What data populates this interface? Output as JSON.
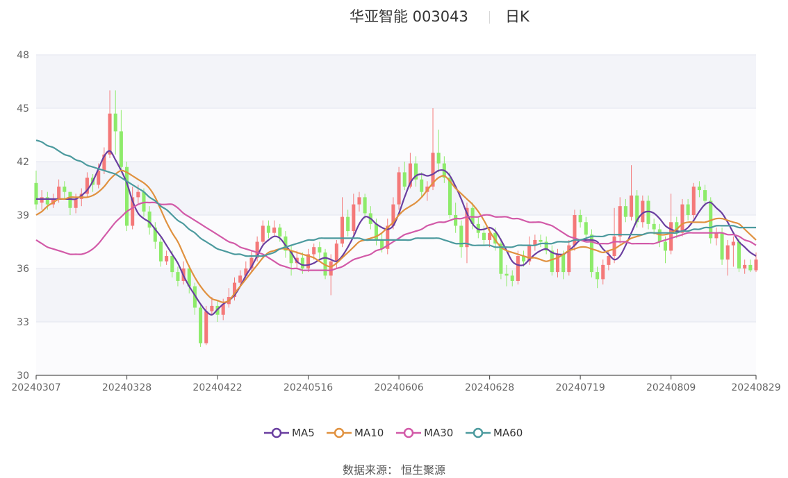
{
  "header": {
    "title": "华亚智能 003043",
    "period": "日K"
  },
  "source": {
    "label": "数据来源：",
    "name": "恒生聚源"
  },
  "chart_data": {
    "type": "candlestick",
    "title": "华亚智能 003043",
    "ylim": [
      30,
      48
    ],
    "yticks": [
      30,
      33,
      36,
      39,
      42,
      45,
      48
    ],
    "xtick_labels": [
      "20240307",
      "20240328",
      "20240422",
      "20240516",
      "20240606",
      "20240628",
      "20240719",
      "20240809",
      "20240829"
    ],
    "xtick_indices": [
      0,
      16,
      32,
      48,
      64,
      80,
      96,
      112,
      127
    ],
    "up_color": "#f47979",
    "down_color": "#8deb6a",
    "grid": true,
    "legend_position": "bottom",
    "ohlc": [
      [
        40.8,
        39.6,
        41.5,
        39.3
      ],
      [
        39.7,
        40.0,
        40.4,
        39.3
      ],
      [
        40.0,
        39.6,
        40.3,
        39.3
      ],
      [
        39.6,
        39.9,
        40.2,
        39.4
      ],
      [
        39.9,
        40.6,
        41.0,
        39.7
      ],
      [
        40.6,
        40.3,
        40.9,
        39.9
      ],
      [
        40.3,
        39.4,
        40.3,
        39.0
      ],
      [
        39.4,
        39.9,
        40.2,
        39.1
      ],
      [
        39.9,
        40.2,
        40.5,
        39.5
      ],
      [
        40.2,
        41.1,
        41.4,
        40.0
      ],
      [
        41.1,
        40.7,
        41.3,
        40.3
      ],
      [
        40.7,
        41.5,
        41.9,
        40.5
      ],
      [
        41.5,
        42.4,
        42.8,
        41.3
      ],
      [
        42.4,
        44.7,
        46.0,
        42.2
      ],
      [
        44.7,
        43.7,
        46.0,
        42.4
      ],
      [
        43.7,
        41.7,
        44.9,
        41.4
      ],
      [
        41.7,
        38.4,
        42.0,
        38.1
      ],
      [
        38.4,
        40.0,
        40.6,
        38.2
      ],
      [
        40.0,
        40.3,
        40.7,
        39.6
      ],
      [
        40.3,
        39.2,
        40.5,
        38.9
      ],
      [
        39.2,
        38.3,
        39.5,
        37.9
      ],
      [
        38.3,
        37.5,
        38.6,
        37.1
      ],
      [
        37.5,
        36.4,
        37.8,
        36.1
      ],
      [
        36.4,
        36.7,
        37.0,
        36.2
      ],
      [
        36.7,
        35.8,
        37.0,
        35.5
      ],
      [
        35.8,
        35.3,
        36.1,
        35.0
      ],
      [
        35.3,
        36.0,
        36.4,
        35.1
      ],
      [
        36.0,
        35.0,
        36.2,
        34.6
      ],
      [
        35.0,
        33.8,
        35.2,
        33.4
      ],
      [
        33.8,
        31.8,
        34.0,
        31.6
      ],
      [
        31.8,
        33.6,
        33.9,
        31.7
      ],
      [
        33.6,
        33.9,
        34.4,
        33.4
      ],
      [
        33.9,
        33.4,
        34.2,
        33.0
      ],
      [
        33.4,
        34.0,
        34.3,
        33.1
      ],
      [
        34.0,
        34.4,
        34.9,
        33.8
      ],
      [
        34.4,
        35.2,
        35.5,
        34.2
      ],
      [
        35.2,
        35.6,
        35.9,
        35.0
      ],
      [
        35.6,
        36.0,
        36.4,
        35.4
      ],
      [
        36.0,
        36.6,
        37.0,
        35.8
      ],
      [
        36.6,
        37.5,
        37.8,
        36.4
      ],
      [
        37.5,
        38.4,
        38.7,
        37.3
      ],
      [
        38.4,
        38.0,
        38.7,
        37.7
      ],
      [
        38.0,
        38.3,
        38.7,
        37.8
      ],
      [
        38.3,
        37.8,
        38.5,
        37.5
      ],
      [
        37.8,
        37.0,
        38.1,
        36.6
      ],
      [
        37.0,
        36.3,
        37.3,
        35.6
      ],
      [
        36.3,
        36.6,
        37.0,
        36.0
      ],
      [
        36.6,
        36.0,
        36.9,
        35.7
      ],
      [
        36.0,
        36.8,
        37.1,
        35.8
      ],
      [
        36.8,
        37.2,
        37.4,
        36.5
      ],
      [
        37.2,
        36.9,
        37.5,
        36.5
      ],
      [
        36.9,
        35.6,
        37.1,
        35.4
      ],
      [
        35.6,
        36.4,
        36.8,
        34.5
      ],
      [
        36.4,
        37.4,
        37.6,
        36.0
      ],
      [
        37.4,
        38.9,
        40.0,
        37.2
      ],
      [
        38.9,
        38.1,
        39.3,
        37.8
      ],
      [
        38.1,
        39.6,
        40.2,
        37.9
      ],
      [
        39.6,
        40.0,
        40.3,
        39.2
      ],
      [
        40.0,
        39.1,
        40.2,
        38.8
      ],
      [
        39.1,
        38.5,
        39.5,
        38.2
      ],
      [
        38.5,
        37.6,
        38.8,
        37.3
      ],
      [
        37.6,
        37.1,
        38.0,
        36.9
      ],
      [
        37.1,
        38.4,
        38.8,
        36.8
      ],
      [
        38.4,
        39.6,
        40.0,
        38.2
      ],
      [
        39.6,
        41.4,
        41.7,
        39.3
      ],
      [
        41.4,
        40.6,
        42.0,
        40.4
      ],
      [
        40.6,
        41.9,
        42.5,
        40.5
      ],
      [
        41.9,
        41.0,
        42.3,
        40.6
      ],
      [
        41.0,
        40.3,
        41.4,
        40.0
      ],
      [
        40.3,
        40.6,
        40.9,
        39.8
      ],
      [
        40.6,
        42.5,
        45.0,
        40.4
      ],
      [
        42.5,
        41.9,
        43.8,
        41.4
      ],
      [
        41.9,
        41.1,
        42.3,
        40.8
      ],
      [
        41.1,
        39.0,
        41.4,
        38.8
      ],
      [
        39.0,
        38.4,
        39.7,
        38.0
      ],
      [
        38.4,
        37.2,
        38.7,
        36.6
      ],
      [
        37.2,
        39.4,
        39.7,
        36.3
      ],
      [
        39.4,
        38.5,
        39.7,
        38.2
      ],
      [
        38.5,
        38.0,
        38.9,
        37.7
      ],
      [
        38.0,
        37.6,
        38.4,
        37.3
      ],
      [
        37.6,
        38.0,
        38.3,
        37.2
      ],
      [
        38.0,
        37.4,
        38.3,
        37.0
      ],
      [
        37.4,
        35.7,
        37.7,
        35.4
      ],
      [
        35.7,
        35.6,
        36.2,
        35.0
      ],
      [
        35.6,
        35.3,
        35.9,
        35.0
      ],
      [
        35.3,
        36.7,
        37.0,
        35.1
      ],
      [
        36.7,
        36.4,
        37.0,
        36.1
      ],
      [
        36.4,
        37.3,
        37.8,
        36.2
      ],
      [
        37.3,
        37.6,
        37.9,
        37.0
      ],
      [
        37.6,
        37.5,
        37.9,
        37.2
      ],
      [
        37.5,
        37.0,
        37.8,
        36.8
      ],
      [
        37.0,
        35.8,
        37.3,
        35.6
      ],
      [
        35.8,
        36.8,
        37.1,
        35.5
      ],
      [
        36.8,
        35.8,
        37.0,
        35.4
      ],
      [
        35.8,
        37.3,
        37.6,
        35.6
      ],
      [
        37.3,
        39.0,
        39.3,
        37.0
      ],
      [
        39.0,
        38.6,
        39.3,
        38.3
      ],
      [
        38.6,
        37.9,
        38.9,
        37.6
      ],
      [
        37.9,
        35.8,
        38.2,
        35.5
      ],
      [
        35.8,
        35.4,
        36.1,
        34.9
      ],
      [
        35.4,
        36.2,
        36.5,
        35.1
      ],
      [
        36.2,
        36.7,
        37.0,
        35.9
      ],
      [
        36.7,
        37.8,
        39.4,
        36.3
      ],
      [
        37.8,
        39.5,
        40.0,
        37.4
      ],
      [
        39.5,
        38.9,
        39.9,
        38.6
      ],
      [
        38.9,
        40.1,
        41.8,
        38.7
      ],
      [
        40.1,
        38.6,
        40.4,
        38.3
      ],
      [
        38.6,
        39.8,
        40.1,
        38.3
      ],
      [
        39.8,
        38.5,
        40.1,
        38.2
      ],
      [
        38.5,
        38.2,
        38.8,
        37.9
      ],
      [
        38.2,
        37.5,
        38.5,
        37.2
      ],
      [
        37.5,
        37.0,
        37.8,
        36.3
      ],
      [
        37.0,
        38.6,
        40.2,
        36.8
      ],
      [
        38.6,
        38.0,
        38.9,
        37.7
      ],
      [
        38.0,
        39.6,
        39.9,
        37.8
      ],
      [
        39.6,
        39.0,
        39.9,
        38.7
      ],
      [
        39.0,
        40.6,
        40.8,
        38.8
      ],
      [
        40.6,
        40.4,
        40.9,
        40.0
      ],
      [
        40.4,
        39.8,
        40.7,
        39.5
      ],
      [
        39.8,
        37.7,
        40.0,
        37.4
      ],
      [
        37.7,
        38.0,
        38.3,
        37.3
      ],
      [
        38.0,
        36.5,
        38.3,
        36.2
      ],
      [
        36.5,
        37.3,
        37.6,
        35.6
      ],
      [
        37.3,
        37.5,
        37.8,
        36.1
      ],
      [
        37.5,
        36.0,
        37.7,
        35.8
      ],
      [
        36.0,
        36.2,
        36.5,
        35.7
      ],
      [
        36.2,
        35.9,
        36.5,
        35.8
      ],
      [
        35.9,
        36.5,
        36.9,
        35.8
      ]
    ],
    "series": [
      {
        "name": "MA5",
        "color": "#6a3fa0",
        "values": [
          39.9,
          39.9,
          39.9,
          39.9,
          39.9,
          39.9,
          39.9,
          39.9,
          40.1,
          40.4,
          40.9,
          41.6,
          42.3,
          42.6,
          42.1,
          41.5,
          40.8,
          39.8,
          39.1,
          38.8,
          38.6,
          38.2,
          37.8,
          37.3,
          36.8,
          36.3,
          35.6,
          35.0,
          34.5,
          34.0,
          33.6,
          33.4,
          33.7,
          34.0,
          34.2,
          34.5,
          35.0,
          35.6,
          36.1,
          36.7,
          37.3,
          37.6,
          37.8,
          37.7,
          37.3,
          36.9,
          36.4,
          36.2,
          36.2,
          36.3,
          36.5,
          36.6,
          36.5,
          36.4,
          36.7,
          37.2,
          37.8,
          38.5,
          38.9,
          38.8,
          38.5,
          38.3,
          38.2,
          38.4,
          39.1,
          40.0,
          40.8,
          41.2,
          41.3,
          41.2,
          41.3,
          41.5,
          41.5,
          41.2,
          40.6,
          39.9,
          39.1,
          38.5,
          38.2,
          38.2,
          38.3,
          38.1,
          37.6,
          37.0,
          36.4,
          36.2,
          36.2,
          36.5,
          36.8,
          37.0,
          37.1,
          36.9,
          36.8,
          36.8,
          37.0,
          37.3,
          37.6,
          37.6,
          37.6,
          37.5,
          37.1,
          36.8,
          36.5,
          36.7,
          37.3,
          38.0,
          38.7,
          39.1,
          39.2,
          39.1,
          38.8,
          38.4,
          38.2,
          38.1,
          38.1,
          38.3,
          38.7,
          39.2,
          39.6,
          39.7,
          39.4,
          39.1,
          38.6,
          38.0,
          37.5,
          37.2,
          36.9,
          36.7
        ]
      },
      {
        "name": "MA10",
        "color": "#e0913f",
        "values": [
          39.0,
          39.2,
          39.5,
          39.7,
          39.9,
          39.9,
          40.0,
          40.0,
          40.0,
          40.0,
          40.1,
          40.3,
          40.6,
          41.0,
          41.3,
          41.5,
          41.4,
          41.2,
          41.0,
          40.8,
          40.5,
          40.0,
          39.3,
          38.6,
          38.0,
          37.5,
          36.8,
          36.1,
          35.5,
          35.0,
          34.6,
          34.3,
          34.2,
          34.1,
          34.2,
          34.6,
          35.0,
          35.4,
          35.8,
          36.2,
          36.6,
          36.9,
          37.0,
          37.1,
          37.1,
          37.0,
          36.9,
          36.8,
          36.7,
          36.6,
          36.4,
          36.2,
          36.1,
          36.3,
          36.6,
          36.9,
          37.2,
          37.5,
          37.6,
          37.7,
          37.8,
          38.0,
          38.3,
          38.6,
          39.0,
          39.3,
          39.5,
          39.7,
          40.0,
          40.4,
          40.8,
          41.1,
          41.2,
          40.9,
          40.5,
          40.2,
          39.9,
          39.6,
          39.2,
          38.7,
          38.1,
          37.6,
          37.2,
          37.0,
          36.9,
          36.8,
          36.7,
          36.6,
          36.6,
          36.5,
          36.4,
          36.5,
          36.6,
          36.8,
          37.0,
          37.1,
          37.2,
          37.2,
          37.1,
          37.0,
          36.9,
          37.0,
          37.1,
          37.3,
          37.5,
          37.7,
          37.8,
          37.9,
          38.0,
          38.0,
          37.9,
          37.9,
          38.0,
          38.2,
          38.5,
          38.6,
          38.6,
          38.6,
          38.6,
          38.7,
          38.8,
          38.8,
          38.7,
          38.6,
          38.5,
          38.2,
          37.9,
          37.6
        ]
      },
      {
        "name": "MA30",
        "color": "#d25aa8",
        "values": [
          37.6,
          37.4,
          37.2,
          37.1,
          37.0,
          36.9,
          36.8,
          36.8,
          36.8,
          36.9,
          37.1,
          37.4,
          37.8,
          38.2,
          38.6,
          38.9,
          39.2,
          39.4,
          39.6,
          39.7,
          39.7,
          39.7,
          39.6,
          39.6,
          39.6,
          39.4,
          39.1,
          38.9,
          38.7,
          38.5,
          38.3,
          38.1,
          37.9,
          37.7,
          37.5,
          37.4,
          37.2,
          37.1,
          37.0,
          36.9,
          36.8,
          36.6,
          36.4,
          36.2,
          36.1,
          36.0,
          36.0,
          35.9,
          35.9,
          35.9,
          35.9,
          35.9,
          35.9,
          36.0,
          36.1,
          36.3,
          36.5,
          36.6,
          36.7,
          36.8,
          37.0,
          37.1,
          37.3,
          37.5,
          37.7,
          37.9,
          38.0,
          38.1,
          38.2,
          38.4,
          38.5,
          38.6,
          38.6,
          38.7,
          38.8,
          38.8,
          38.9,
          38.9,
          38.9,
          39.0,
          39.0,
          38.9,
          38.9,
          38.9,
          38.8,
          38.8,
          38.7,
          38.6,
          38.6,
          38.6,
          38.5,
          38.4,
          38.2,
          38.0,
          37.8,
          37.7,
          37.6,
          37.5,
          37.5,
          37.4,
          37.4,
          37.4,
          37.5,
          37.5,
          37.5,
          37.4,
          37.4,
          37.4,
          37.4,
          37.4,
          37.5,
          37.6,
          37.7,
          37.8,
          37.9,
          38.0,
          38.0,
          38.0,
          38.0,
          38.0,
          38.0,
          38.0,
          37.9,
          37.9,
          37.8,
          37.6,
          37.5,
          37.3
        ]
      },
      {
        "name": "MA60",
        "color": "#4c9a9e",
        "values": [
          43.2,
          43.1,
          42.9,
          42.8,
          42.6,
          42.4,
          42.3,
          42.1,
          42.0,
          41.8,
          41.7,
          41.6,
          41.5,
          41.4,
          41.3,
          41.1,
          40.9,
          40.7,
          40.5,
          40.3,
          40.0,
          39.8,
          39.5,
          39.3,
          39.0,
          38.7,
          38.5,
          38.2,
          38.0,
          37.7,
          37.5,
          37.3,
          37.1,
          37.0,
          36.9,
          36.8,
          36.8,
          36.7,
          36.7,
          36.7,
          36.7,
          36.8,
          36.9,
          37.1,
          37.2,
          37.3,
          37.4,
          37.5,
          37.6,
          37.6,
          37.7,
          37.7,
          37.7,
          37.7,
          37.7,
          37.7,
          37.7,
          37.7,
          37.6,
          37.6,
          37.6,
          37.6,
          37.6,
          37.6,
          37.6,
          37.6,
          37.6,
          37.7,
          37.7,
          37.7,
          37.7,
          37.7,
          37.6,
          37.5,
          37.4,
          37.4,
          37.4,
          37.3,
          37.3,
          37.3,
          37.3,
          37.2,
          37.2,
          37.2,
          37.2,
          37.3,
          37.3,
          37.3,
          37.3,
          37.4,
          37.4,
          37.4,
          37.5,
          37.5,
          37.5,
          37.6,
          37.6,
          37.7,
          37.8,
          37.8,
          37.8,
          37.9,
          37.9,
          37.9,
          37.9,
          37.9,
          37.9,
          37.9,
          38.0,
          38.0,
          38.0,
          38.0,
          38.0,
          38.0,
          38.1,
          38.1,
          38.2,
          38.2,
          38.3,
          38.3,
          38.4,
          38.4,
          38.4,
          38.4,
          38.3,
          38.3,
          38.3,
          38.3
        ]
      }
    ]
  }
}
